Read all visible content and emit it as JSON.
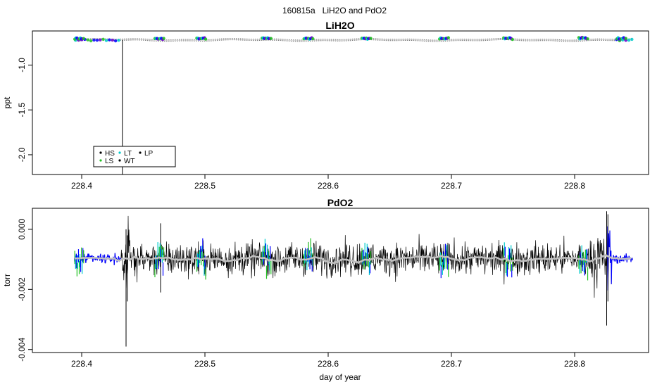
{
  "figure_title": "160815a   LiH2O and PdO2",
  "colors": {
    "HS": "#000000",
    "LS": "#22c022",
    "LT": "#00cccc",
    "WT": "#000000",
    "LP": "#000000",
    "blue": "#0000ff",
    "purple": "#6a00cc",
    "smooth": "#c0c0c0",
    "trace": "#000000",
    "axis": "#000000"
  },
  "chart_data": [
    {
      "type": "scatter",
      "title": "LiH2O",
      "xlabel": "",
      "ylabel": "ppt",
      "xlim": [
        228.36,
        228.86
      ],
      "ylim": [
        -2.22,
        -0.62
      ],
      "x_ticks": [
        228.4,
        228.5,
        228.6,
        228.7,
        228.8
      ],
      "x_tick_labels": [
        "228.4",
        "228.5",
        "228.6",
        "228.7",
        "228.8"
      ],
      "y_ticks": [
        -2.0,
        -1.5,
        -1.0
      ],
      "y_tick_labels": [
        "-2.0",
        "-1.5",
        "-1.0"
      ],
      "baseline": -0.72,
      "drop": {
        "x": 228.433,
        "from": -0.72,
        "to": -2.22
      },
      "x_start": 228.395,
      "x_end": 228.847,
      "calibration_windows": [
        228.398,
        228.463,
        228.497,
        228.55,
        228.584,
        228.631,
        228.694,
        228.746,
        228.807,
        228.838
      ],
      "legend": {
        "position": "bottom-left",
        "entries": [
          {
            "label": "HS",
            "color_key": "HS"
          },
          {
            "label": "LT",
            "color_key": "LT"
          },
          {
            "label": "LP",
            "color_key": "LP"
          },
          {
            "label": "LS",
            "color_key": "LS"
          },
          {
            "label": "WT",
            "color_key": "WT"
          }
        ]
      },
      "grid": false
    },
    {
      "type": "line",
      "title": "PdO2",
      "xlabel": "day of year",
      "ylabel": "torr",
      "xlim": [
        228.36,
        228.86
      ],
      "ylim": [
        -0.0041,
        0.0007
      ],
      "x_ticks": [
        228.4,
        228.5,
        228.6,
        228.7,
        228.8
      ],
      "x_tick_labels": [
        "228.4",
        "228.5",
        "228.6",
        "228.7",
        "228.8"
      ],
      "y_ticks": [
        0.0,
        -0.002,
        -0.004
      ],
      "y_tick_labels": [
        "0.000",
        "-0.002",
        "-0.004"
      ],
      "mean": -0.00098,
      "noise_amplitude": 0.00045,
      "x_start": 228.394,
      "x_end": 228.847,
      "spikes": [
        {
          "x": 228.436,
          "min": -0.0039,
          "max": 0.0
        },
        {
          "x": 228.437,
          "min": -0.0024,
          "max": -0.0002
        },
        {
          "x": 228.464,
          "min": -0.0021,
          "max": 0.0002
        },
        {
          "x": 228.826,
          "min": -0.0032,
          "max": 0.0006
        },
        {
          "x": 228.827,
          "min": -0.0024,
          "max": 0.0005
        }
      ],
      "calibration_windows": [
        228.398,
        228.463,
        228.497,
        228.55,
        228.584,
        228.631,
        228.694,
        228.746,
        228.807
      ],
      "blue_segments": [
        [
          228.394,
          228.432
        ],
        [
          228.826,
          228.847
        ]
      ],
      "grid": false
    }
  ]
}
